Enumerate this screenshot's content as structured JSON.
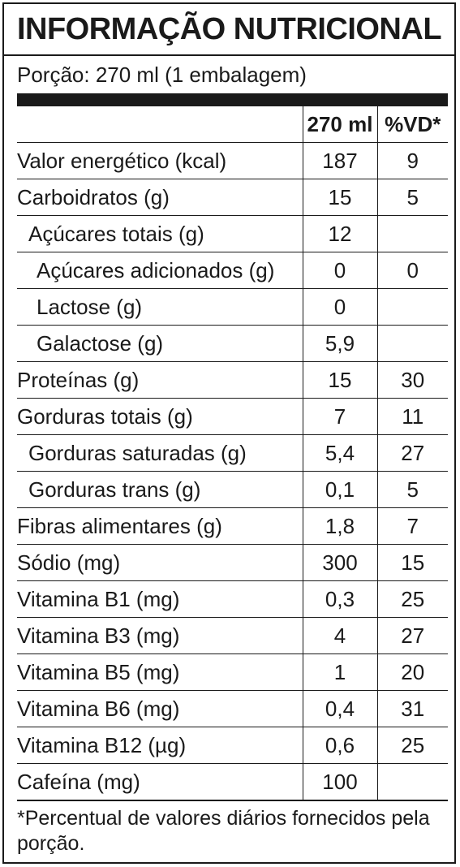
{
  "title": "INFORMAÇÃO NUTRICIONAL",
  "portion": "Porção: 270 ml (1 embalagem)",
  "header": {
    "qty": "270 ml",
    "vd": "%VD*"
  },
  "rows": [
    {
      "name": "Valor energético (kcal)",
      "qty": "187",
      "vd": "9"
    },
    {
      "name": "Carboidratos (g)",
      "qty": "15",
      "vd": "5"
    },
    {
      "name": "Açúcares totais (g)",
      "qty": "12",
      "vd": ""
    },
    {
      "name": "Açúcares adicionados (g)",
      "qty": "0",
      "vd": "0"
    },
    {
      "name": "Lactose (g)",
      "qty": "0",
      "vd": ""
    },
    {
      "name": "Galactose (g)",
      "qty": "5,9",
      "vd": ""
    },
    {
      "name": "Proteínas (g)",
      "qty": "15",
      "vd": "30"
    },
    {
      "name": "Gorduras totais (g)",
      "qty": "7",
      "vd": "11"
    },
    {
      "name": "Gorduras saturadas (g)",
      "qty": "5,4",
      "vd": "27"
    },
    {
      "name": "Gorduras trans (g)",
      "qty": "0,1",
      "vd": "5"
    },
    {
      "name": "Fibras alimentares (g)",
      "qty": "1,8",
      "vd": "7"
    },
    {
      "name": "Sódio (mg)",
      "qty": "300",
      "vd": "15"
    },
    {
      "name": "Vitamina B1 (mg)",
      "qty": "0,3",
      "vd": "25"
    },
    {
      "name": "Vitamina B3 (mg)",
      "qty": "4",
      "vd": "27"
    },
    {
      "name": "Vitamina B5 (mg)",
      "qty": "1",
      "vd": "20"
    },
    {
      "name": "Vitamina B6 (mg)",
      "qty": "0,4",
      "vd": "31"
    },
    {
      "name": "Vitamina B12 (µg)",
      "qty": "0,6",
      "vd": "25"
    },
    {
      "name": "Cafeína (mg)",
      "qty": "100",
      "vd": ""
    }
  ],
  "footnote": "*Percentual de valores diários fornecidos pela porção."
}
